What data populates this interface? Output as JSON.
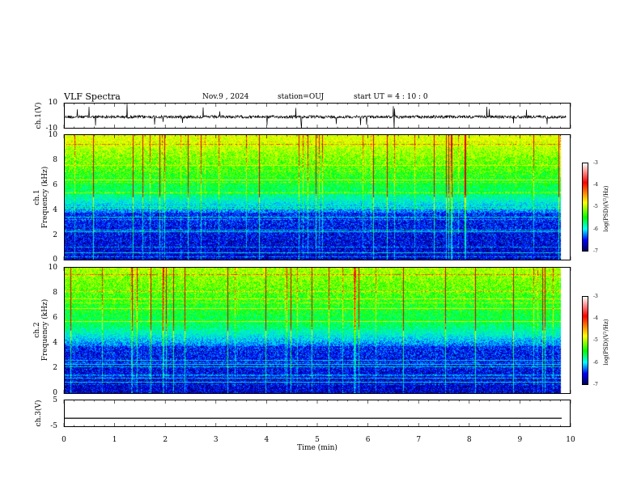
{
  "header": {
    "title": "VLF Spectra",
    "date": "Nov.9 , 2024",
    "station": "station=OUJ",
    "start": "start UT =  4 : 10 : 0"
  },
  "chart_data": [
    {
      "type": "line",
      "name_label": "ch.1(V)",
      "ylim": [
        -10,
        10
      ],
      "ticks": [
        "10",
        "-10"
      ],
      "description_series": "noisy waveform near 0 V with sporadic spikes",
      "xlim": [
        0,
        10
      ]
    },
    {
      "type": "heatmap",
      "ylabel_top": "ch.1",
      "ylabel": "Frequency (kHz)",
      "ylim": [
        0,
        10
      ],
      "yticks": [
        "0",
        "2",
        "4",
        "6",
        "8",
        "10"
      ],
      "colorbar": {
        "min": -7,
        "max": -3,
        "ticks": [
          "-3",
          "-4",
          "-5",
          "-6",
          "-7"
        ],
        "label": "log(PSD)(V²/Hz)"
      }
    },
    {
      "type": "heatmap",
      "ylabel_top": "ch.2",
      "ylabel": "Frequency (kHz)",
      "ylim": [
        0,
        10
      ],
      "yticks": [
        "0",
        "2",
        "4",
        "6",
        "8",
        "10"
      ],
      "colorbar": {
        "min": -7,
        "max": -3,
        "ticks": [
          "-3",
          "-4",
          "-5",
          "-6",
          "-7"
        ],
        "label": "log(PSD)(V²/Hz)"
      }
    },
    {
      "type": "line",
      "name_label": "ch.3(V)",
      "ylim": [
        -5,
        5
      ],
      "ticks": [
        "5",
        "-5"
      ],
      "xlim": [
        0,
        10
      ],
      "constant_value": -1.5
    }
  ],
  "xaxis": {
    "label": "Time (min)",
    "ticks": [
      "0",
      "1",
      "2",
      "3",
      "4",
      "5",
      "6",
      "7",
      "8",
      "9",
      "10"
    ]
  }
}
